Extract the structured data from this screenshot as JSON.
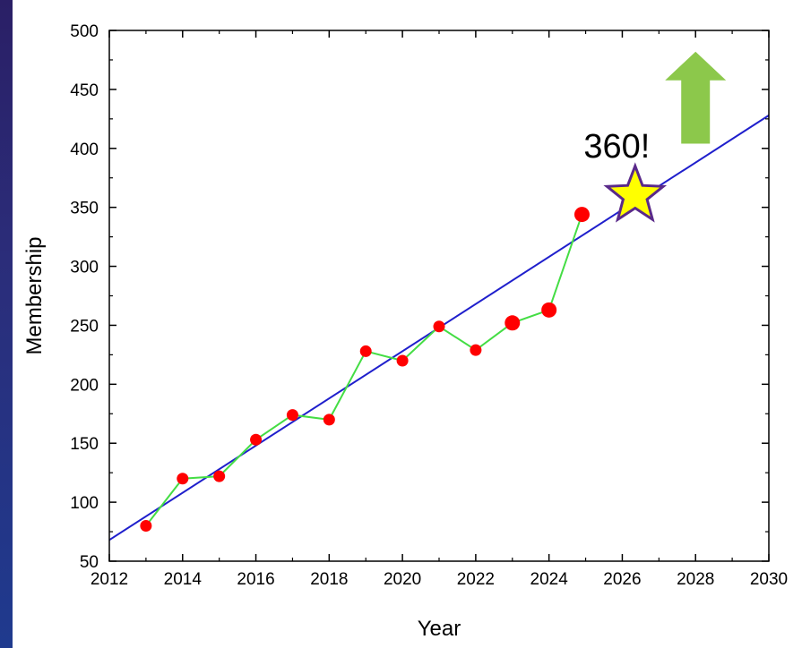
{
  "chart_data": {
    "type": "scatter",
    "xlabel": "Year",
    "ylabel": "Membership",
    "xlim": [
      2012,
      2030
    ],
    "ylim": [
      50,
      500
    ],
    "x_ticks": [
      2012,
      2014,
      2016,
      2018,
      2020,
      2022,
      2024,
      2026,
      2028,
      2030
    ],
    "y_ticks": [
      50,
      100,
      150,
      200,
      250,
      300,
      350,
      400,
      450,
      500
    ],
    "grid": false,
    "series": [
      {
        "type": "line+markers",
        "marker_color": "#ff0000",
        "line_color": "#44dd44",
        "points": [
          {
            "x": 2013,
            "y": 80
          },
          {
            "x": 2014,
            "y": 120
          },
          {
            "x": 2015,
            "y": 122
          },
          {
            "x": 2016,
            "y": 153
          },
          {
            "x": 2017,
            "y": 174
          },
          {
            "x": 2018,
            "y": 170
          },
          {
            "x": 2019,
            "y": 228
          },
          {
            "x": 2020,
            "y": 220
          },
          {
            "x": 2021,
            "y": 249
          },
          {
            "x": 2022,
            "y": 229
          },
          {
            "x": 2023,
            "y": 252
          },
          {
            "x": 2024,
            "y": 263
          },
          {
            "x": 2024.9,
            "y": 344
          }
        ]
      }
    ],
    "trend_line": {
      "color": "#1f1fcc",
      "points": [
        {
          "x": 2012,
          "y": 68
        },
        {
          "x": 2030,
          "y": 428
        }
      ]
    },
    "annotations": {
      "star": {
        "x": 2026.35,
        "y": 360,
        "fill": "#ffff00",
        "stroke": "#5a2a8a"
      },
      "label": {
        "text": "360!",
        "x": 2025.85,
        "y": 403
      },
      "arrow": {
        "x": 2028.0,
        "y_bottom": 404,
        "y_top": 482,
        "color": "#8cc84b",
        "direction": "up"
      }
    }
  }
}
